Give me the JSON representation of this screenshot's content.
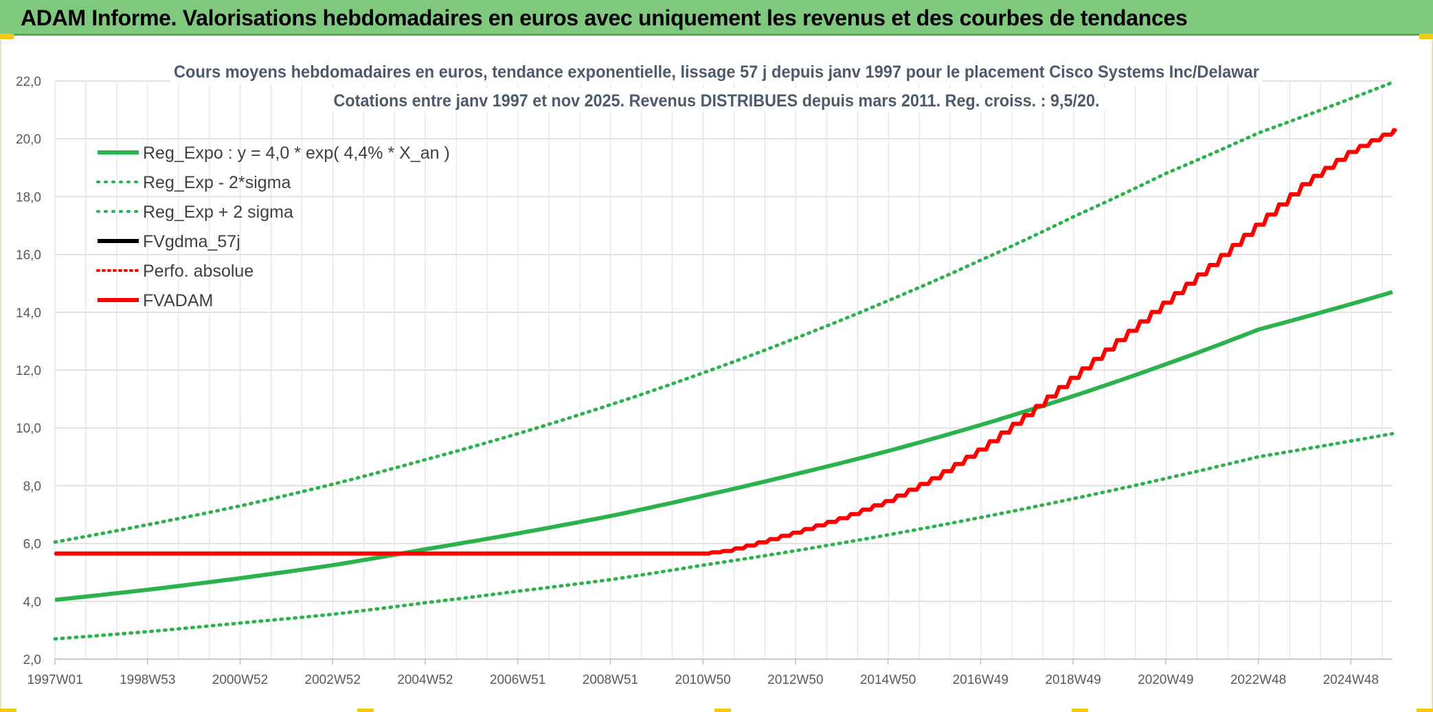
{
  "header": {
    "title": "ADAM Informe. Valorisations hebdomadaires en euros avec uniquement les revenus et des courbes de tendances",
    "bar_color": "#7fc97f"
  },
  "chart_data": {
    "type": "line",
    "title_line1": "Cours moyens hebdomadaires en euros, tendance exponentielle, lissage 57 j depuis janv 1997 pour le placement Cisco Systems Inc/Delawar",
    "title_line2": "Cotations entre janv 1997 et nov 2025. Revenus DISTRIBUES depuis mars 2011. Reg. croiss. : 9,5/20.",
    "x_tick_labels": [
      "1997W01",
      "1998W53",
      "2000W52",
      "2002W52",
      "2004W52",
      "2006W51",
      "2008W51",
      "2010W50",
      "2012W50",
      "2014W50",
      "2016W49",
      "2018W49",
      "2020W49",
      "2022W48",
      "2024W48"
    ],
    "x_range": [
      1997.0,
      2025.9
    ],
    "ylim": [
      2.0,
      22.0
    ],
    "y_tick_step": 2.0,
    "y_tick_labels": [
      "2,0",
      "4,0",
      "6,0",
      "8,0",
      "10,0",
      "12,0",
      "14,0",
      "16,0",
      "18,0",
      "20,0",
      "22,0"
    ],
    "grid": true,
    "legend": [
      {
        "label": "Reg_Expo : y = 4,0 * exp( 4,4% *  X_an )",
        "color": "#2bb24c",
        "style": "solid"
      },
      {
        "label": "Reg_Exp - 2*sigma",
        "color": "#2bb24c",
        "style": "dotted"
      },
      {
        "label": "Reg_Exp + 2 sigma",
        "color": "#2bb24c",
        "style": "dotted"
      },
      {
        "label": "FVgdma_57j",
        "color": "#000000",
        "style": "solid"
      },
      {
        "label": "Perfo. absolue",
        "color": "#ff0000",
        "style": "dotted"
      },
      {
        "label": "FVADAM",
        "color": "#ff0000",
        "style": "solid"
      }
    ],
    "series": [
      {
        "name": "Reg_Expo",
        "color": "#2bb24c",
        "style": "solid",
        "x": [
          1997,
          1999,
          2001,
          2003,
          2005,
          2007,
          2009,
          2011,
          2013,
          2015,
          2017,
          2019,
          2021,
          2023,
          2025.9
        ],
        "y": [
          4.05,
          4.4,
          4.8,
          5.25,
          5.8,
          6.35,
          6.95,
          7.65,
          8.4,
          9.2,
          10.1,
          11.1,
          12.2,
          13.4,
          14.7
        ]
      },
      {
        "name": "Reg_Exp - 2*sigma",
        "color": "#2bb24c",
        "style": "dotted",
        "x": [
          1997,
          1999,
          2001,
          2003,
          2005,
          2007,
          2009,
          2011,
          2013,
          2015,
          2017,
          2019,
          2021,
          2023,
          2025.9
        ],
        "y": [
          2.7,
          2.95,
          3.25,
          3.55,
          3.95,
          4.35,
          4.75,
          5.25,
          5.75,
          6.3,
          6.9,
          7.55,
          8.25,
          9.0,
          9.8
        ]
      },
      {
        "name": "Reg_Exp + 2 sigma",
        "color": "#2bb24c",
        "style": "dotted",
        "x": [
          1997,
          1999,
          2001,
          2003,
          2005,
          2007,
          2009,
          2011,
          2013,
          2015,
          2017,
          2019,
          2021,
          2023,
          2025.9
        ],
        "y": [
          6.05,
          6.65,
          7.3,
          8.05,
          8.9,
          9.8,
          10.8,
          11.9,
          13.1,
          14.4,
          15.8,
          17.3,
          18.8,
          20.2,
          21.95
        ]
      },
      {
        "name": "FVgdma_57j",
        "color": "#000000",
        "style": "solid",
        "x": [
          1997,
          2010.95,
          2011.5,
          2012,
          2013,
          2014,
          2015,
          2016,
          2017,
          2018,
          2019,
          2020,
          2021,
          2022,
          2023,
          2024,
          2025,
          2025.9
        ],
        "y": [
          5.65,
          5.65,
          5.75,
          5.95,
          6.4,
          6.9,
          7.5,
          8.3,
          9.3,
          10.5,
          11.8,
          13.1,
          14.4,
          15.7,
          17.1,
          18.5,
          19.6,
          20.3
        ]
      },
      {
        "name": "Perfo. absolue",
        "color": "#ff0000",
        "style": "dotted",
        "x": [
          1997,
          2010.95,
          2011.5,
          2012,
          2013,
          2014,
          2015,
          2016,
          2017,
          2018,
          2019,
          2020,
          2021,
          2022,
          2023,
          2024,
          2025,
          2025.9
        ],
        "y": [
          5.65,
          5.65,
          5.75,
          5.95,
          6.4,
          6.9,
          7.5,
          8.3,
          9.3,
          10.5,
          11.8,
          13.1,
          14.4,
          15.7,
          17.1,
          18.5,
          19.6,
          20.3
        ]
      },
      {
        "name": "FVADAM",
        "color": "#ff0000",
        "style": "solid",
        "x": [
          1997,
          2010.95,
          2011.5,
          2012,
          2013,
          2014,
          2015,
          2016,
          2017,
          2018,
          2019,
          2020,
          2021,
          2022,
          2023,
          2024,
          2025,
          2025.9
        ],
        "y": [
          5.65,
          5.65,
          5.75,
          5.95,
          6.4,
          6.9,
          7.5,
          8.3,
          9.3,
          10.5,
          11.8,
          13.1,
          14.4,
          15.7,
          17.1,
          18.5,
          19.6,
          20.3
        ]
      }
    ]
  }
}
